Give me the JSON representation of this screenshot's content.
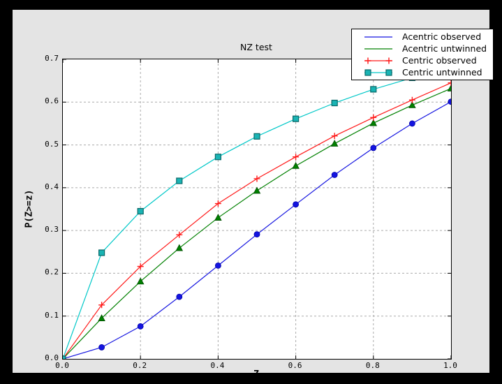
{
  "colors": {
    "canvas_bg": "#000000",
    "figure_bg": "#e4e4e4",
    "plot_bg": "#ffffff",
    "grid_color": "#ababab",
    "spine_color": "#000000"
  },
  "chart_data": {
    "type": "line",
    "title": "NZ test",
    "xlabel": "Z",
    "ylabel": "P(Z>=z)",
    "xlim": [
      0.0,
      1.0
    ],
    "ylim": [
      0.0,
      0.7
    ],
    "grid": true,
    "legend_position": "upper right, overlapping top-right corner of axes",
    "xticks": [
      "0.0",
      "0.2",
      "0.4",
      "0.6",
      "0.8",
      "1.0"
    ],
    "yticks": [
      "0.0",
      "0.1",
      "0.2",
      "0.3",
      "0.4",
      "0.5",
      "0.6",
      "0.7"
    ],
    "x": [
      0.0,
      0.1,
      0.2,
      0.3,
      0.4,
      0.5,
      0.6,
      0.7,
      0.8,
      0.9,
      1.0
    ],
    "series": [
      {
        "name": "Acentric observed",
        "color": "#1414e0",
        "marker": "circle",
        "marker_fill": "#1414e0",
        "marker_edge": "#0000a8",
        "legend_marker": false,
        "values": [
          0.0,
          0.027,
          0.076,
          0.145,
          0.218,
          0.291,
          0.361,
          0.43,
          0.493,
          0.55,
          0.601
        ]
      },
      {
        "name": "Acentric untwinned",
        "color": "#008000",
        "marker": "triangle",
        "marker_fill": "#008000",
        "marker_edge": "#004d00",
        "legend_marker": false,
        "values": [
          0.0,
          0.095,
          0.181,
          0.259,
          0.33,
          0.393,
          0.451,
          0.503,
          0.551,
          0.593,
          0.632
        ]
      },
      {
        "name": "Centric observed",
        "color": "#ff1a1a",
        "marker": "plus",
        "marker_fill": "#ff1a1a",
        "marker_edge": "#ff1a1a",
        "legend_marker": true,
        "values": [
          0.0,
          0.126,
          0.216,
          0.29,
          0.363,
          0.421,
          0.472,
          0.521,
          0.564,
          0.605,
          0.645
        ]
      },
      {
        "name": "Centric untwinned",
        "color": "#00c8c8",
        "marker": "square",
        "marker_fill": "#1ab4b4",
        "marker_edge": "#0a6868",
        "legend_marker": true,
        "values": [
          0.0,
          0.248,
          0.345,
          0.416,
          0.472,
          0.52,
          0.561,
          0.598,
          0.63,
          0.657,
          0.683
        ]
      }
    ]
  }
}
